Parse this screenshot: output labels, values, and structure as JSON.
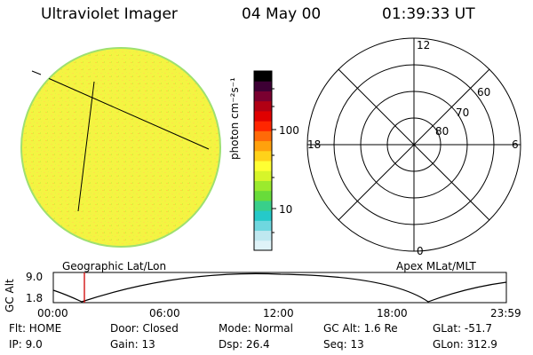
{
  "header": {
    "instrument": "Ultraviolet Imager",
    "date": "04 May 00",
    "time": "01:39:33 UT"
  },
  "colorbar": {
    "unit_label": "photon cm⁻²s⁻¹",
    "ticks": [
      "100",
      "10"
    ],
    "colors": [
      "#dff3f8",
      "#bfe8f0",
      "#6fd7df",
      "#25c9c9",
      "#39cf8a",
      "#68dc3a",
      "#9bea2d",
      "#d7f52a",
      "#ffff33",
      "#ffd21a",
      "#ffa10d",
      "#ff6a08",
      "#ff2600",
      "#e00000",
      "#b10014",
      "#7a0030",
      "#3d0034",
      "#000000"
    ]
  },
  "earth_image": {
    "fill": "#f4f442",
    "edge": "#9ee070",
    "label": "Geographic Lat/Lon"
  },
  "polar_grid": {
    "labels": {
      "top": "12",
      "bottom": "0",
      "left": "18",
      "right": "6"
    },
    "rings": [
      "60",
      "70",
      "80"
    ],
    "label": "Apex MLat/MLT"
  },
  "altitude_plot": {
    "ylabel": "GC Alt",
    "yticks": [
      "9.0",
      "1.8"
    ],
    "xticks": [
      "00:00",
      "06:00",
      "12:00",
      "18:00",
      "23:59"
    ],
    "marker_color": "#d00000"
  },
  "status": {
    "flt": "Flt: HOME",
    "ip": "IP:  9.0",
    "door": "Door: Closed",
    "gain": "Gain: 13",
    "mode": "Mode: Normal",
    "dsp": "Dsp:   26.4",
    "gcalt": "GC Alt: 1.6 Re",
    "seq": "Seq: 13",
    "glat": "GLat: -51.7",
    "glon": "GLon: 312.9"
  }
}
